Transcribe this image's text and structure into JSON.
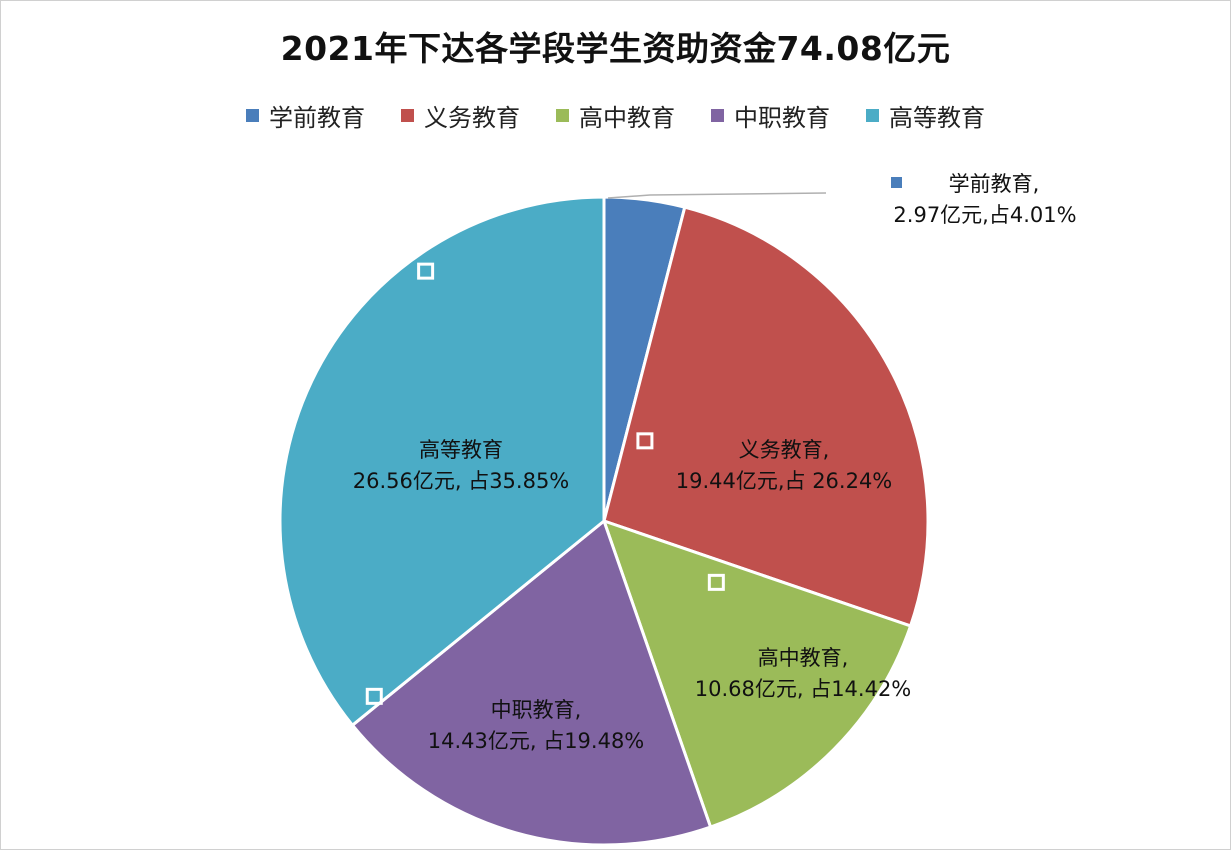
{
  "colors": {
    "学前教育": "#4a7ebb",
    "义务教育": "#c0504d",
    "高中教育": "#9bbb59",
    "中职教育": "#8064a2",
    "高等教育": "#4bacc6"
  },
  "chart_data": {
    "type": "pie",
    "title": "2021年下达各学段学生资助资金74.08亿元",
    "legend_position": "top",
    "categories": [
      "学前教育",
      "义务教育",
      "高中教育",
      "中职教育",
      "高等教育"
    ],
    "values": [
      2.97,
      19.44,
      10.68,
      14.43,
      26.56
    ],
    "percents": [
      4.01,
      26.24,
      14.42,
      19.48,
      35.85
    ],
    "data_labels": [
      {
        "line1": "学前教育,",
        "line2": "2.97亿元,占4.01%"
      },
      {
        "line1": "义务教育,",
        "line2": "19.44亿元,占 26.24%"
      },
      {
        "line1": "高中教育,",
        "line2": "10.68亿元, 占14.42%"
      },
      {
        "line1": "中职教育,",
        "line2": "14.43亿元, 占19.48%"
      },
      {
        "line1": "高等教育",
        "line2": "26.56亿元, 占35.85%"
      }
    ]
  }
}
